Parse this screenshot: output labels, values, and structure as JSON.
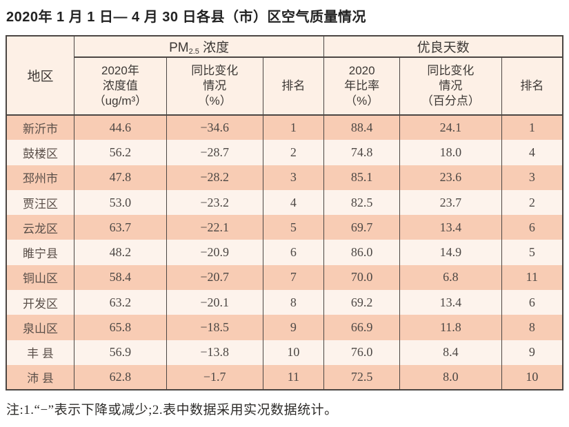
{
  "page": {
    "title": "2020年 1 月 1 日— 4 月 30 日各县（市）区空气质量情况",
    "note": "注:1.“−”表示下降或减少;2.表中数据采用实况数据统计。"
  },
  "colors": {
    "row_salmon": "#f8ccb4",
    "row_light": "#fdf3ec",
    "header_bg": "#fdf0e6",
    "border": "#4a4542",
    "text": "#4c4744"
  },
  "table": {
    "region_header": "地区",
    "groups": {
      "pm25": {
        "prefix": "PM",
        "sub": "2.5",
        "suffix": " 浓度"
      },
      "good_days": {
        "label": "优良天数"
      }
    },
    "sub_headers": {
      "pm_value": "2020年\n浓度值\n（ug/m³）",
      "pm_change": "同比变化\n情况\n（%）",
      "pm_rank": "排名",
      "ratio": "2020\n年比率\n（%）",
      "ratio_change": "同比变化\n情况\n（百分点）",
      "days_rank": "排名"
    },
    "rows": [
      {
        "region": "新沂市",
        "pm_value": "44.6",
        "pm_change": "−34.6",
        "pm_rank": "1",
        "ratio": "88.4",
        "ratio_change": "24.1",
        "days_rank": "1"
      },
      {
        "region": "鼓楼区",
        "pm_value": "56.2",
        "pm_change": "−28.7",
        "pm_rank": "2",
        "ratio": "74.8",
        "ratio_change": "18.0",
        "days_rank": "4"
      },
      {
        "region": "邳州市",
        "pm_value": "47.8",
        "pm_change": "−28.2",
        "pm_rank": "3",
        "ratio": "85.1",
        "ratio_change": "23.6",
        "days_rank": "3"
      },
      {
        "region": "贾汪区",
        "pm_value": "53.0",
        "pm_change": "−23.2",
        "pm_rank": "4",
        "ratio": "82.5",
        "ratio_change": "23.7",
        "days_rank": "2"
      },
      {
        "region": "云龙区",
        "pm_value": "63.7",
        "pm_change": "−22.1",
        "pm_rank": "5",
        "ratio": "69.7",
        "ratio_change": "13.4",
        "days_rank": "6"
      },
      {
        "region": "睢宁县",
        "pm_value": "48.2",
        "pm_change": "−20.9",
        "pm_rank": "6",
        "ratio": "86.0",
        "ratio_change": "14.9",
        "days_rank": "5"
      },
      {
        "region": "铜山区",
        "pm_value": "58.4",
        "pm_change": "−20.7",
        "pm_rank": "7",
        "ratio": "70.0",
        "ratio_change": "6.8",
        "days_rank": "11"
      },
      {
        "region": "开发区",
        "pm_value": "63.2",
        "pm_change": "−20.1",
        "pm_rank": "8",
        "ratio": "69.2",
        "ratio_change": "13.4",
        "days_rank": "6"
      },
      {
        "region": "泉山区",
        "pm_value": "65.8",
        "pm_change": "−18.5",
        "pm_rank": "9",
        "ratio": "66.9",
        "ratio_change": "11.8",
        "days_rank": "8"
      },
      {
        "region": "丰 县",
        "pm_value": "56.9",
        "pm_change": "−13.8",
        "pm_rank": "10",
        "ratio": "76.0",
        "ratio_change": "8.4",
        "days_rank": "9"
      },
      {
        "region": "沛 县",
        "pm_value": "62.8",
        "pm_change": "−1.7",
        "pm_rank": "11",
        "ratio": "72.5",
        "ratio_change": "8.0",
        "days_rank": "10"
      }
    ]
  }
}
